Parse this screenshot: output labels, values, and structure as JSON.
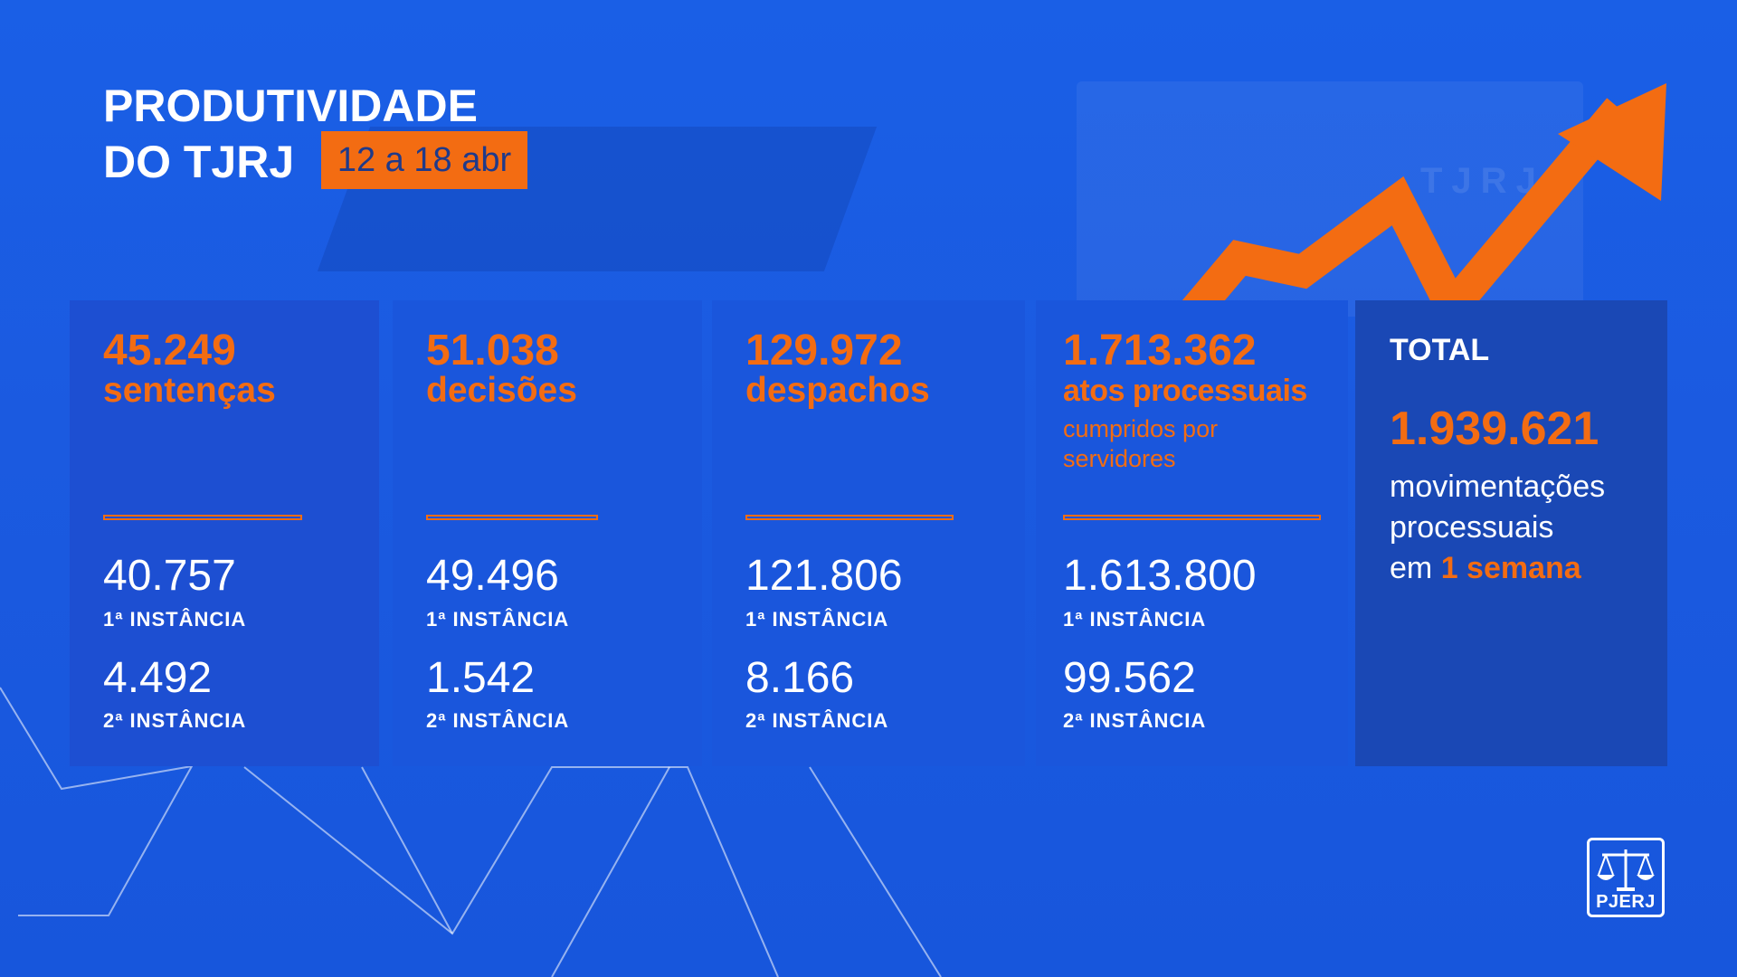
{
  "title_line1": "PRODUTIVIDADE",
  "title_line2": "DO TJRJ",
  "date_range": "12 a 18 abr",
  "background_building_text": "TJRJ",
  "colors": {
    "background": "#1a5fe6",
    "accent": "#f36c12",
    "total_card": "#1a48b5",
    "text": "#ffffff"
  },
  "icons": {
    "arrow": "trend-up-arrow-icon",
    "logo": "scales-of-justice-icon"
  },
  "cards": [
    {
      "value": "45.249",
      "label": "sentenças",
      "sub_label": "",
      "instance1_value": "40.757",
      "instance1_label": "1ª INSTÂNCIA",
      "instance2_value": "4.492",
      "instance2_label": "2ª INSTÂNCIA"
    },
    {
      "value": "51.038",
      "label": "decisões",
      "sub_label": "",
      "instance1_value": "49.496",
      "instance1_label": "1ª INSTÂNCIA",
      "instance2_value": "1.542",
      "instance2_label": "2ª INSTÂNCIA"
    },
    {
      "value": "129.972",
      "label": "despachos",
      "sub_label": "",
      "instance1_value": "121.806",
      "instance1_label": "1ª INSTÂNCIA",
      "instance2_value": "8.166",
      "instance2_label": "2ª INSTÂNCIA"
    },
    {
      "value": "1.713.362",
      "label": "atos processuais",
      "sub_label": "cumpridos por servidores",
      "instance1_value": "1.613.800",
      "instance1_label": "1ª INSTÂNCIA",
      "instance2_value": "99.562",
      "instance2_label": "2ª INSTÂNCIA"
    }
  ],
  "total": {
    "title": "TOTAL",
    "value": "1.939.621",
    "desc_line1": "movimentações",
    "desc_line2": "processuais",
    "desc_prefix": "em",
    "desc_accent": "1 semana"
  },
  "logo_text": "PJERJ"
}
